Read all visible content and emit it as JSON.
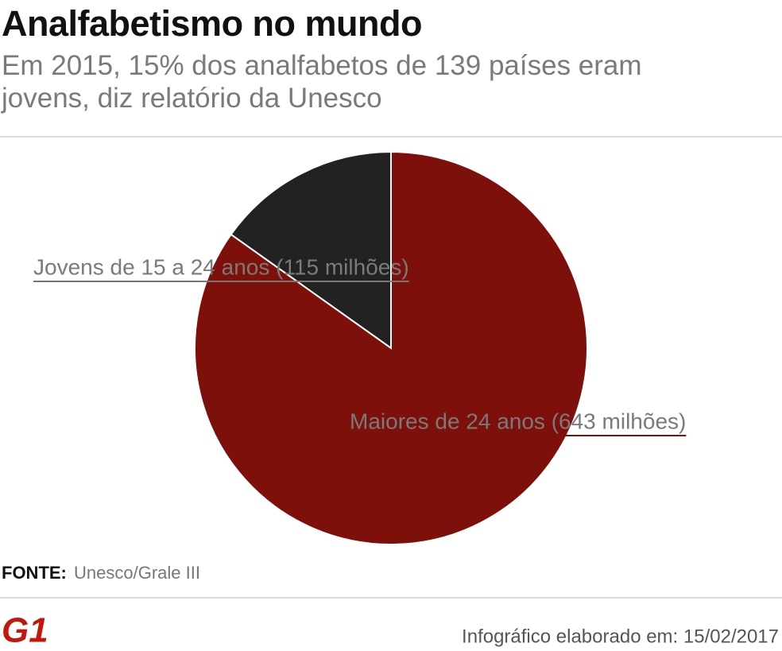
{
  "chart_data": {
    "type": "pie",
    "title": "Analfabetismo no mundo",
    "subtitle": "Em 2015, 15% dos analfabetos de 139 países eram jovens, diz relatório da Unesco",
    "categories": [
      "Jovens de 15 a 24 anos (115 milhões)",
      "Maiores de 24 anos (643 milhões)"
    ],
    "values": [
      115,
      643
    ],
    "colors": [
      "#222222",
      "#7d100a"
    ],
    "source_label": "FONTE:",
    "source": "Unesco/Grale III",
    "logo": "G1",
    "footer": "Infográfico elaborado em: 15/02/2017"
  }
}
